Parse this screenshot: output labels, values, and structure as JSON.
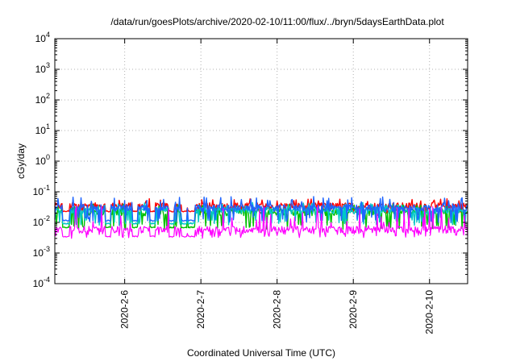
{
  "chart_data": {
    "type": "line",
    "title": "/data/run/goesPlots/archive/2020-02-10/11:00/flux/../bryn/5daysEarthData.plot",
    "xlabel": "Coordinated Universal Time (UTC)",
    "ylabel": "cGy/day",
    "y_scale": "log",
    "ylim": [
      0.0001,
      10000
    ],
    "y_ticks": [
      {
        "base": "10",
        "exp": "-4"
      },
      {
        "base": "10",
        "exp": "-3"
      },
      {
        "base": "10",
        "exp": "-2"
      },
      {
        "base": "10",
        "exp": "-1"
      },
      {
        "base": "10",
        "exp": "0"
      },
      {
        "base": "10",
        "exp": "1"
      },
      {
        "base": "10",
        "exp": "2"
      },
      {
        "base": "10",
        "exp": "3"
      },
      {
        "base": "10",
        "exp": "4"
      }
    ],
    "xlim": [
      "2020-02-05T02:00",
      "2020-02-10T12:00"
    ],
    "x_tick_labels": [
      "2020-2-6",
      "2020-2-7",
      "2020-2-8",
      "2020-2-9",
      "2020-2-10"
    ],
    "x_ticks": [
      "2020-02-06",
      "2020-02-07",
      "2020-02-08",
      "2020-02-09",
      "2020-02-10"
    ],
    "grid": true,
    "legend": "none",
    "series": [
      {
        "color": "#ff0000",
        "typical": 0.035,
        "low": 0.02,
        "high": 0.06
      },
      {
        "color": "#00c000",
        "typical": 0.022,
        "low": 0.006,
        "high": 0.04
      },
      {
        "color": "#00c8c8",
        "typical": 0.025,
        "low": 0.008,
        "high": 0.045
      },
      {
        "color": "#1e64ff",
        "typical": 0.03,
        "low": 0.01,
        "high": 0.07
      },
      {
        "color": "#ff00ff",
        "typical": 0.006,
        "low": 0.003,
        "high": 0.035
      }
    ],
    "gaps": [
      {
        "start": "2020-02-05T04:30",
        "end": "2020-02-05T06:30"
      },
      {
        "start": "2020-02-05T18:00",
        "end": "2020-02-05T19:30"
      },
      {
        "start": "2020-02-06T02:30",
        "end": "2020-02-06T04:00"
      },
      {
        "start": "2020-02-06T08:00",
        "end": "2020-02-06T09:30"
      },
      {
        "start": "2020-02-06T14:00",
        "end": "2020-02-06T15:30"
      },
      {
        "start": "2020-02-06T18:00",
        "end": "2020-02-06T19:30"
      },
      {
        "start": "2020-02-06T20:00",
        "end": "2020-02-06T22:00"
      }
    ]
  }
}
